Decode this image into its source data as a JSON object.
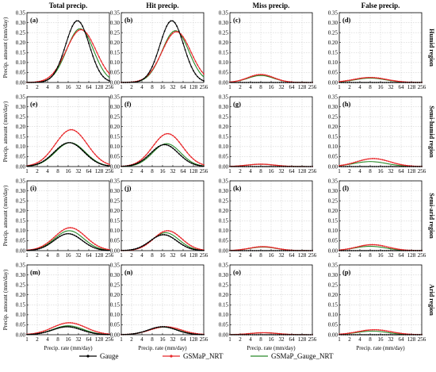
{
  "figure": {
    "column_titles": [
      "Total precip.",
      "Hit precip.",
      "Miss precip.",
      "False precip."
    ],
    "row_labels": [
      "Humid region",
      "Semi-humid region",
      "Semi-arid region",
      "Arid region"
    ],
    "ylabel": "Precip. amount (mm/day)",
    "xlabel": "Precip. rate (mm/day)",
    "legend": [
      {
        "name": "Gauge",
        "color": "#000000",
        "marker": "dot"
      },
      {
        "name": "GSMaP_NRT",
        "color": "#e8282b",
        "marker": "dot"
      },
      {
        "name": "GSMaP_Gauge_NRT",
        "color": "#2a8a2a",
        "marker": "none"
      }
    ]
  },
  "chart_data": {
    "type": "line",
    "x_scale": "log2",
    "x_ticks": [
      1,
      2,
      4,
      8,
      16,
      32,
      64,
      128,
      256
    ],
    "x_tick_labels": [
      "1",
      "2",
      "4",
      "8",
      "16",
      "32",
      "64",
      "128",
      "256"
    ],
    "panels": [
      {
        "label": "(a)",
        "row": 0,
        "col": 0,
        "ylim": [
          0,
          0.35
        ],
        "y_ticks": [
          "0.00",
          "0.05",
          "0.10",
          "0.15",
          "0.20",
          "0.25",
          "0.30",
          "0.35"
        ],
        "series": {
          "Gauge": {
            "mu": 4.9,
            "sigma": 1.15,
            "amp": 0.31
          },
          "GSMaP_NRT": {
            "mu": 5.25,
            "sigma": 1.45,
            "amp": 0.265
          },
          "GSMaP_Gauge_NRT": {
            "mu": 5.15,
            "sigma": 1.3,
            "amp": 0.27
          }
        }
      },
      {
        "label": "(b)",
        "row": 0,
        "col": 1,
        "ylim": [
          0,
          0.35
        ],
        "y_ticks": [
          "0.00",
          "0.05",
          "0.10",
          "0.15",
          "0.20",
          "0.25",
          "0.30",
          "0.35"
        ],
        "series": {
          "Gauge": {
            "mu": 4.9,
            "sigma": 1.15,
            "amp": 0.31
          },
          "GSMaP_NRT": {
            "mu": 5.35,
            "sigma": 1.4,
            "amp": 0.255
          },
          "GSMaP_Gauge_NRT": {
            "mu": 5.25,
            "sigma": 1.3,
            "amp": 0.26
          }
        }
      },
      {
        "label": "(c)",
        "row": 0,
        "col": 2,
        "ylim": [
          0,
          0.35
        ],
        "y_ticks": [
          "0.00",
          "0.05",
          "0.10",
          "0.15",
          "0.20",
          "0.25",
          "0.30",
          "0.35"
        ],
        "series": {
          "Gauge": {
            "mu": 3.0,
            "sigma": 1.3,
            "amp": 0.0
          },
          "GSMaP_NRT": {
            "mu": 3.0,
            "sigma": 1.25,
            "amp": 0.04
          },
          "GSMaP_Gauge_NRT": {
            "mu": 3.0,
            "sigma": 1.25,
            "amp": 0.035
          }
        }
      },
      {
        "label": "(d)",
        "row": 0,
        "col": 3,
        "ylim": [
          0,
          0.35
        ],
        "y_ticks": [
          "0.00",
          "0.05",
          "0.10",
          "0.15",
          "0.20",
          "0.25",
          "0.30",
          "0.35"
        ],
        "series": {
          "Gauge": {
            "mu": 3.0,
            "sigma": 1.5,
            "amp": 0.0
          },
          "GSMaP_NRT": {
            "mu": 3.0,
            "sigma": 1.6,
            "amp": 0.025
          },
          "GSMaP_Gauge_NRT": {
            "mu": 3.0,
            "sigma": 1.5,
            "amp": 0.022
          }
        }
      },
      {
        "label": "(e)",
        "row": 1,
        "col": 0,
        "ylim": [
          0,
          0.35
        ],
        "y_ticks": [
          "0.00",
          "0.05",
          "0.10",
          "0.15",
          "0.20",
          "0.25",
          "0.30",
          "0.35"
        ],
        "series": {
          "Gauge": {
            "mu": 4.1,
            "sigma": 1.45,
            "amp": 0.12
          },
          "GSMaP_NRT": {
            "mu": 4.3,
            "sigma": 1.55,
            "amp": 0.185
          },
          "GSMaP_Gauge_NRT": {
            "mu": 4.2,
            "sigma": 1.45,
            "amp": 0.12
          }
        }
      },
      {
        "label": "(f)",
        "row": 1,
        "col": 1,
        "ylim": [
          0,
          0.35
        ],
        "y_ticks": [
          "0.00",
          "0.05",
          "0.10",
          "0.15",
          "0.20",
          "0.25",
          "0.30",
          "0.35"
        ],
        "series": {
          "Gauge": {
            "mu": 4.2,
            "sigma": 1.35,
            "amp": 0.11
          },
          "GSMaP_NRT": {
            "mu": 4.5,
            "sigma": 1.45,
            "amp": 0.165
          },
          "GSMaP_Gauge_NRT": {
            "mu": 4.4,
            "sigma": 1.35,
            "amp": 0.115
          }
        }
      },
      {
        "label": "(g)",
        "row": 1,
        "col": 2,
        "ylim": [
          0,
          0.35
        ],
        "y_ticks": [
          "0.00",
          "0.05",
          "0.10",
          "0.15",
          "0.20",
          "0.25",
          "0.30",
          "0.35"
        ],
        "series": {
          "Gauge": {
            "mu": 3.0,
            "sigma": 1.3,
            "amp": 0.0
          },
          "GSMaP_NRT": {
            "mu": 3.0,
            "sigma": 1.3,
            "amp": 0.012
          },
          "GSMaP_Gauge_NRT": {
            "mu": 3.0,
            "sigma": 1.3,
            "amp": 0.012
          }
        }
      },
      {
        "label": "(h)",
        "row": 1,
        "col": 3,
        "ylim": [
          0,
          0.35
        ],
        "y_ticks": [
          "0.00",
          "0.05",
          "0.10",
          "0.15",
          "0.20",
          "0.25",
          "0.30",
          "0.35"
        ],
        "series": {
          "Gauge": {
            "mu": 3.0,
            "sigma": 1.5,
            "amp": 0.0
          },
          "GSMaP_NRT": {
            "mu": 3.3,
            "sigma": 1.6,
            "amp": 0.04
          },
          "GSMaP_Gauge_NRT": {
            "mu": 3.0,
            "sigma": 1.6,
            "amp": 0.025
          }
        }
      },
      {
        "label": "(i)",
        "row": 2,
        "col": 0,
        "ylim": [
          0,
          0.35
        ],
        "y_ticks": [
          "0.00",
          "0.05",
          "0.10",
          "0.15",
          "0.20",
          "0.25",
          "0.30",
          "0.35"
        ],
        "series": {
          "Gauge": {
            "mu": 4.0,
            "sigma": 1.35,
            "amp": 0.085
          },
          "GSMaP_NRT": {
            "mu": 4.2,
            "sigma": 1.5,
            "amp": 0.115
          },
          "GSMaP_Gauge_NRT": {
            "mu": 4.1,
            "sigma": 1.4,
            "amp": 0.1
          }
        }
      },
      {
        "label": "(j)",
        "row": 2,
        "col": 1,
        "ylim": [
          0,
          0.35
        ],
        "y_ticks": [
          "0.00",
          "0.05",
          "0.10",
          "0.15",
          "0.20",
          "0.25",
          "0.30",
          "0.35"
        ],
        "series": {
          "Gauge": {
            "mu": 4.1,
            "sigma": 1.3,
            "amp": 0.08
          },
          "GSMaP_NRT": {
            "mu": 4.5,
            "sigma": 1.35,
            "amp": 0.1
          },
          "GSMaP_Gauge_NRT": {
            "mu": 4.3,
            "sigma": 1.3,
            "amp": 0.09
          }
        }
      },
      {
        "label": "(k)",
        "row": 2,
        "col": 2,
        "ylim": [
          0,
          0.35
        ],
        "y_ticks": [
          "0.00",
          "0.05",
          "0.10",
          "0.15",
          "0.20",
          "0.25",
          "0.30",
          "0.35"
        ],
        "series": {
          "Gauge": {
            "mu": 3.0,
            "sigma": 1.3,
            "amp": 0.0
          },
          "GSMaP_NRT": {
            "mu": 3.2,
            "sigma": 1.3,
            "amp": 0.02
          },
          "GSMaP_Gauge_NRT": {
            "mu": 3.2,
            "sigma": 1.3,
            "amp": 0.018
          }
        }
      },
      {
        "label": "(l)",
        "row": 2,
        "col": 3,
        "ylim": [
          0,
          0.35
        ],
        "y_ticks": [
          "0.00",
          "0.05",
          "0.10",
          "0.15",
          "0.20",
          "0.25",
          "0.30",
          "0.35"
        ],
        "series": {
          "Gauge": {
            "mu": 3.0,
            "sigma": 1.5,
            "amp": 0.0
          },
          "GSMaP_NRT": {
            "mu": 3.2,
            "sigma": 1.5,
            "amp": 0.03
          },
          "GSMaP_Gauge_NRT": {
            "mu": 3.0,
            "sigma": 1.5,
            "amp": 0.022
          }
        }
      },
      {
        "label": "(m)",
        "row": 3,
        "col": 0,
        "ylim": [
          0,
          0.35
        ],
        "y_ticks": [
          "0.00",
          "0.05",
          "0.10",
          "0.15",
          "0.20",
          "0.25",
          "0.30",
          "0.35"
        ],
        "series": {
          "Gauge": {
            "mu": 3.9,
            "sigma": 1.4,
            "amp": 0.04
          },
          "GSMaP_NRT": {
            "mu": 4.1,
            "sigma": 1.6,
            "amp": 0.06
          },
          "GSMaP_Gauge_NRT": {
            "mu": 4.0,
            "sigma": 1.45,
            "amp": 0.045
          }
        }
      },
      {
        "label": "(n)",
        "row": 3,
        "col": 1,
        "ylim": [
          0,
          0.35
        ],
        "y_ticks": [
          "0.00",
          "0.05",
          "0.10",
          "0.15",
          "0.20",
          "0.25",
          "0.30",
          "0.35"
        ],
        "series": {
          "Gauge": {
            "mu": 4.0,
            "sigma": 1.35,
            "amp": 0.04
          },
          "GSMaP_NRT": {
            "mu": 4.3,
            "sigma": 1.5,
            "amp": 0.04
          },
          "GSMaP_Gauge_NRT": {
            "mu": 4.1,
            "sigma": 1.4,
            "amp": 0.038
          }
        }
      },
      {
        "label": "(o)",
        "row": 3,
        "col": 2,
        "ylim": [
          0,
          0.35
        ],
        "y_ticks": [
          "0.00",
          "0.05",
          "0.10",
          "0.15",
          "0.20",
          "0.25",
          "0.30",
          "0.35"
        ],
        "series": {
          "Gauge": {
            "mu": 3.0,
            "sigma": 1.3,
            "amp": 0.0
          },
          "GSMaP_NRT": {
            "mu": 3.3,
            "sigma": 1.3,
            "amp": 0.01
          },
          "GSMaP_Gauge_NRT": {
            "mu": 3.3,
            "sigma": 1.3,
            "amp": 0.01
          }
        }
      },
      {
        "label": "(p)",
        "row": 3,
        "col": 3,
        "ylim": [
          0,
          0.35
        ],
        "y_ticks": [
          "0.00",
          "0.05",
          "0.10",
          "0.15",
          "0.20",
          "0.25",
          "0.30",
          "0.35"
        ],
        "series": {
          "Gauge": {
            "mu": 3.0,
            "sigma": 1.5,
            "amp": 0.0
          },
          "GSMaP_NRT": {
            "mu": 3.4,
            "sigma": 1.6,
            "amp": 0.025
          },
          "GSMaP_Gauge_NRT": {
            "mu": 3.2,
            "sigma": 1.5,
            "amp": 0.018
          }
        }
      }
    ]
  }
}
